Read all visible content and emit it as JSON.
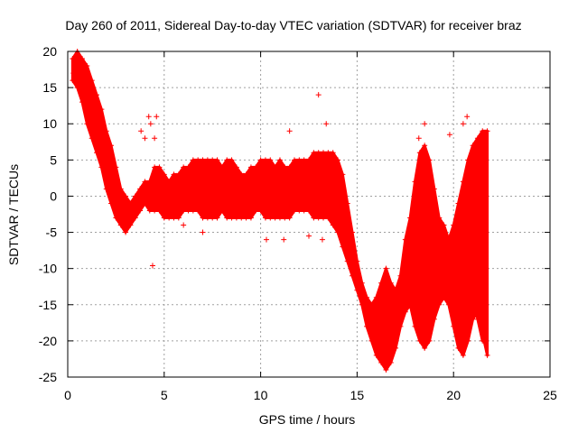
{
  "chart_data": {
    "type": "scatter",
    "title": "Day 260 of 2011, Sidereal Day-to-day VTEC variation (SDTVAR) for receiver braz",
    "xlabel": "GPS time / hours",
    "ylabel": "SDTVAR / TECUs",
    "xlim": [
      0,
      25
    ],
    "ylim": [
      -25,
      20
    ],
    "x_ticks": [
      0,
      5,
      10,
      15,
      20,
      25
    ],
    "y_ticks": [
      -25,
      -20,
      -15,
      -10,
      -5,
      0,
      5,
      10,
      15,
      20
    ],
    "grid": true,
    "marker": "+",
    "color": "#ff0000",
    "series": [
      {
        "name": "band-main",
        "x": [
          0.25,
          0.5,
          0.75,
          1.0,
          1.25,
          1.5,
          1.75,
          2.0,
          2.25,
          2.5,
          2.75,
          3.0,
          3.25,
          3.5,
          3.75,
          4.0,
          4.25,
          4.5,
          4.75,
          5.0,
          5.25,
          5.5,
          5.75,
          6.0,
          6.25,
          6.5,
          6.75,
          7.0,
          7.25,
          7.5,
          7.75,
          8.0,
          8.25,
          8.5,
          8.75,
          9.0,
          9.25,
          9.5,
          9.75,
          10.0,
          10.25,
          10.5,
          10.75,
          11.0,
          11.25,
          11.5,
          11.75,
          12.0,
          12.25,
          12.5,
          12.75,
          13.0,
          13.25,
          13.5,
          13.75,
          14.0,
          14.25,
          14.5,
          14.75,
          15.0,
          15.25,
          15.5,
          15.75,
          16.0,
          16.25,
          16.5,
          16.75,
          17.0,
          17.25,
          17.5,
          17.75,
          18.0,
          18.25,
          18.5,
          18.75,
          19.0,
          19.25,
          19.5,
          19.75,
          20.0,
          20.25,
          20.5,
          20.75,
          21.0,
          21.25,
          21.5,
          21.75
        ],
        "y_low": [
          16,
          15,
          13,
          10,
          8,
          6,
          4,
          1,
          -1,
          -3,
          -4,
          -5,
          -4,
          -3,
          -2,
          -1,
          -2,
          -2,
          -2,
          -3,
          -3,
          -3,
          -3,
          -2,
          -2,
          -2,
          -2,
          -3,
          -3,
          -3,
          -3,
          -2,
          -3,
          -3,
          -3,
          -3,
          -3,
          -3,
          -2,
          -2,
          -3,
          -3,
          -3,
          -3,
          -3,
          -3,
          -2,
          -2,
          -2,
          -2,
          -3,
          -3,
          -3,
          -3,
          -4,
          -5,
          -7,
          -9,
          -11,
          -13,
          -15,
          -18,
          -20,
          -22,
          -23,
          -24,
          -23,
          -21,
          -18,
          -16,
          -15,
          -18,
          -20,
          -21,
          -20,
          -17,
          -15,
          -14,
          -15,
          -18,
          -21,
          -22,
          -20,
          -17,
          -16,
          -19,
          -22
        ],
        "y_high": [
          19,
          20,
          19,
          18,
          16,
          14,
          12,
          9,
          7,
          4,
          1,
          0,
          -1,
          0,
          1,
          2,
          2,
          4,
          4,
          3,
          2,
          3,
          3,
          4,
          4,
          5,
          5,
          5,
          5,
          5,
          5,
          4,
          5,
          5,
          4,
          3,
          3,
          4,
          4,
          5,
          5,
          5,
          4,
          5,
          4,
          4,
          5,
          5,
          5,
          5,
          6,
          6,
          6,
          6,
          6,
          5,
          3,
          -1,
          -5,
          -9,
          -12,
          -14,
          -15,
          -14,
          -12,
          -10,
          -12,
          -13,
          -11,
          -6,
          -3,
          2,
          6,
          7,
          5,
          1,
          -3,
          -5,
          -6,
          -4,
          -1,
          2,
          5,
          7,
          8,
          9,
          9
        ]
      },
      {
        "name": "band-upper-branch",
        "x": [
          18.5,
          18.75,
          19.0,
          19.25,
          19.5,
          19.75,
          20.0,
          20.25,
          20.5,
          20.75,
          21.0,
          21.25,
          21.5
        ],
        "y_low": [
          -14,
          -10,
          -8,
          -7,
          -6,
          -7,
          -9,
          -10,
          -11,
          -12,
          -14,
          -17,
          -20
        ],
        "y_high": [
          -6,
          -4,
          -3,
          -3,
          -4,
          -6,
          -7,
          -8,
          -8,
          -9,
          -11,
          -13,
          -16
        ]
      }
    ],
    "outliers": [
      {
        "x": 0.3,
        "y": 17
      },
      {
        "x": 3.8,
        "y": 9
      },
      {
        "x": 4.0,
        "y": 8
      },
      {
        "x": 4.2,
        "y": 11
      },
      {
        "x": 4.3,
        "y": 10
      },
      {
        "x": 4.4,
        "y": -9.6
      },
      {
        "x": 4.5,
        "y": 8
      },
      {
        "x": 4.6,
        "y": 11
      },
      {
        "x": 6.0,
        "y": -4
      },
      {
        "x": 7.0,
        "y": -5
      },
      {
        "x": 10.3,
        "y": -6
      },
      {
        "x": 11.2,
        "y": -6
      },
      {
        "x": 11.5,
        "y": 9
      },
      {
        "x": 12.5,
        "y": -5.5
      },
      {
        "x": 13.0,
        "y": 14
      },
      {
        "x": 13.2,
        "y": -6
      },
      {
        "x": 13.4,
        "y": 10
      },
      {
        "x": 18.2,
        "y": 8
      },
      {
        "x": 18.5,
        "y": 10
      },
      {
        "x": 19.8,
        "y": 8.5
      },
      {
        "x": 20.5,
        "y": 10
      },
      {
        "x": 20.7,
        "y": 11
      }
    ]
  }
}
